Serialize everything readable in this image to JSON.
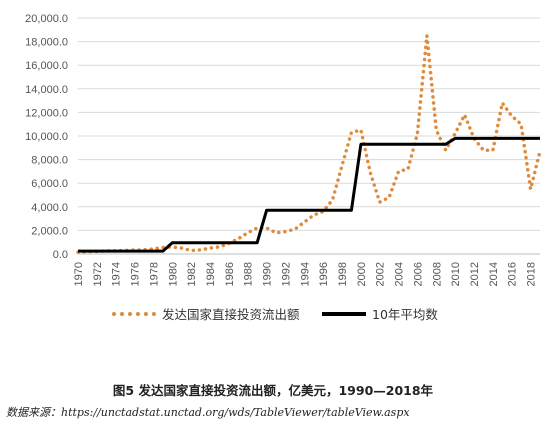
{
  "chart_data": {
    "type": "line",
    "title": "",
    "xlabel": "",
    "ylabel": "",
    "ylim": [
      0,
      20000
    ],
    "yticks": [
      "0.0",
      "2,000.0",
      "4,000.0",
      "6,000.0",
      "8,000.0",
      "10,000.0",
      "12,000.0",
      "14,000.0",
      "16,000.0",
      "18,000.0",
      "20,000.0"
    ],
    "xticks": [
      "1970",
      "1972",
      "1974",
      "1976",
      "1978",
      "1980",
      "1982",
      "1984",
      "1986",
      "1988",
      "1990",
      "1992",
      "1994",
      "1996",
      "1998",
      "2000",
      "2002",
      "2004",
      "2006",
      "2008",
      "2010",
      "2012",
      "2014",
      "2016",
      "2018"
    ],
    "grid": true,
    "legend_position": "bottom",
    "series": [
      {
        "name": "发达国家直接投资流出额",
        "style": "dotted",
        "color": "#e08a3c",
        "x": [
          1970,
          1971,
          1972,
          1973,
          1974,
          1975,
          1976,
          1977,
          1978,
          1979,
          1980,
          1981,
          1982,
          1983,
          1984,
          1985,
          1986,
          1987,
          1988,
          1989,
          1990,
          1991,
          1992,
          1993,
          1994,
          1995,
          1996,
          1997,
          1998,
          1999,
          2000,
          2001,
          2002,
          2003,
          2004,
          2005,
          2006,
          2007,
          2008,
          2009,
          2010,
          2011,
          2012,
          2013,
          2014,
          2015,
          2016,
          2017,
          2018,
          2019
        ],
        "y": [
          150,
          200,
          230,
          260,
          280,
          300,
          330,
          360,
          420,
          550,
          600,
          500,
          300,
          350,
          500,
          600,
          900,
          1300,
          1800,
          2200,
          2200,
          1800,
          1900,
          2100,
          2700,
          3300,
          3600,
          4600,
          7500,
          10300,
          10500,
          6900,
          4400,
          4800,
          7000,
          7200,
          10200,
          18500,
          10500,
          8800,
          10200,
          11800,
          9800,
          8800,
          8800,
          12800,
          11700,
          11000,
          5500,
          8700
        ]
      },
      {
        "name": "10年平均数",
        "style": "solid",
        "color": "#000000",
        "x": [
          1970,
          1979,
          1980,
          1989,
          1990,
          1999,
          2000,
          2009,
          2010,
          2019
        ],
        "y": [
          250,
          250,
          950,
          950,
          3700,
          3700,
          9300,
          9300,
          9800,
          9800
        ]
      }
    ]
  },
  "caption": "图5  发达国家直接投资流出额，亿美元，1990—2018年",
  "source": "数据来源：https://unctadstat.unctad.org/wds/TableViewer/tableView.aspx"
}
